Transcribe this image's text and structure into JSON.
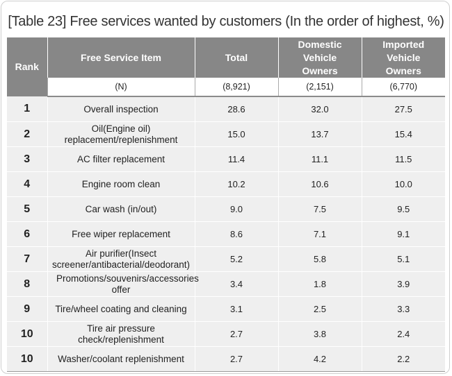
{
  "title": "[Table 23] Free services wanted by customers (In the order of highest, %)",
  "headers": {
    "rank": "Rank",
    "item": "Free Service Item",
    "total": "Total",
    "domestic": "Domestic Vehicle Owners",
    "imported": "Imported Vehicle Owners"
  },
  "n_row": {
    "label": "(N)",
    "total": "(8,921)",
    "domestic": "(2,151)",
    "imported": "(6,770)"
  },
  "rows": [
    {
      "rank": "1",
      "item": "Overall inspection",
      "total": "28.6",
      "domestic": "32.0",
      "imported": "27.5"
    },
    {
      "rank": "2",
      "item": "Oil(Engine oil) replacement/replenishment",
      "total": "15.0",
      "domestic": "13.7",
      "imported": "15.4"
    },
    {
      "rank": "3",
      "item": "AC filter replacement",
      "total": "11.4",
      "domestic": "11.1",
      "imported": "11.5"
    },
    {
      "rank": "4",
      "item": "Engine room clean",
      "total": "10.2",
      "domestic": "10.6",
      "imported": "10.0"
    },
    {
      "rank": "5",
      "item": "Car wash (in/out)",
      "total": "9.0",
      "domestic": "7.5",
      "imported": "9.5"
    },
    {
      "rank": "6",
      "item": "Free wiper replacement",
      "total": "8.6",
      "domestic": "7.1",
      "imported": "9.1"
    },
    {
      "rank": "7",
      "item": "Air purifier(Insect screener/antibacterial/deodorant)",
      "total": "5.2",
      "domestic": "5.8",
      "imported": "5.1"
    },
    {
      "rank": "8",
      "item": "Promotions/souvenirs/accessories offer",
      "total": "3.4",
      "domestic": "1.8",
      "imported": "3.9"
    },
    {
      "rank": "9",
      "item": "Tire/wheel coating and cleaning",
      "total": "3.1",
      "domestic": "2.5",
      "imported": "3.3"
    },
    {
      "rank": "10",
      "item": "Tire air pressure check/replenishment",
      "total": "2.7",
      "domestic": "3.8",
      "imported": "2.4"
    },
    {
      "rank": "10",
      "item": "Washer/coolant replenishment",
      "total": "2.7",
      "domestic": "4.2",
      "imported": "2.2"
    }
  ]
}
